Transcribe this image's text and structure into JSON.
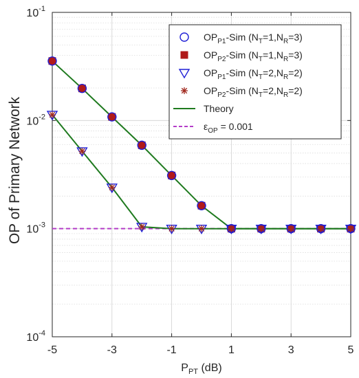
{
  "chart_data": {
    "type": "line",
    "x_axis": {
      "label_main": "P",
      "label_sub": "PT",
      "label_unit": " (dB)",
      "range": [
        -5,
        5
      ],
      "ticks": [
        -5,
        -3,
        -1,
        1,
        3,
        5
      ],
      "tick_labels": [
        "-5",
        "-3",
        "-1",
        "1",
        "3",
        "5"
      ],
      "grid_major": true
    },
    "y_axis": {
      "label": "OP of Primary Network",
      "scale": "log",
      "range": [
        0.0001,
        0.1
      ],
      "ticks": [
        0.0001,
        0.001,
        0.01,
        0.1
      ],
      "tick_labels": [
        {
          "base": "10",
          "exp": "-4"
        },
        {
          "base": "10",
          "exp": "-3"
        },
        {
          "base": "10",
          "exp": "-2"
        },
        {
          "base": "10",
          "exp": "-1"
        }
      ],
      "grid_major": true,
      "grid_minor": true
    },
    "x": [
      -5,
      -4,
      -3,
      -2,
      -1,
      0,
      1,
      2,
      3,
      4,
      5
    ],
    "series": [
      {
        "legend": {
          "pre": "OP",
          "sub1": "P1",
          "mid": "-Sim (N",
          "sub2": "T",
          "mid2": "=1,N",
          "sub3": "R",
          "post": "=3)"
        },
        "marker": "circle",
        "color": "#1f1fd6",
        "values": [
          0.0355,
          0.0198,
          0.0108,
          0.0059,
          0.0031,
          0.00163,
          0.001,
          0.001,
          0.001,
          0.001,
          0.001
        ]
      },
      {
        "legend": {
          "pre": "OP",
          "sub1": "P2",
          "mid": "-Sim (N",
          "sub2": "T",
          "mid2": "=1,N",
          "sub3": "R",
          "post": "=3)"
        },
        "marker": "square",
        "color": "#b01a1a",
        "values": [
          0.0355,
          0.0198,
          0.0108,
          0.0059,
          0.0031,
          0.00163,
          0.001,
          0.001,
          0.001,
          0.001,
          0.001
        ]
      },
      {
        "legend": {
          "pre": "OP",
          "sub1": "P1",
          "mid": "-Sim (N",
          "sub2": "T",
          "mid2": "=2,N",
          "sub3": "R",
          "post": "=2)"
        },
        "marker": "triangle-down",
        "color": "#1f1fd6",
        "values": [
          0.0113,
          0.0052,
          0.0024,
          0.00104,
          0.001,
          0.001,
          0.001,
          0.001,
          0.001,
          0.001,
          0.001
        ]
      },
      {
        "legend": {
          "pre": "OP",
          "sub1": "P2",
          "mid": "-Sim (N",
          "sub2": "T",
          "mid2": "=2,N",
          "sub3": "R",
          "post": "=2)"
        },
        "marker": "asterisk",
        "color": "#a0281e",
        "values": [
          0.0113,
          0.0052,
          0.0024,
          0.00104,
          0.001,
          0.001,
          0.001,
          0.001,
          0.001,
          0.001,
          0.001
        ]
      }
    ],
    "theory": {
      "legend": "Theory",
      "color": "#1f7a1f",
      "curves": [
        [
          0.0355,
          0.0198,
          0.0108,
          0.0059,
          0.0031,
          0.00163,
          0.001,
          0.001,
          0.001,
          0.001,
          0.001
        ],
        [
          0.0113,
          0.0052,
          0.0024,
          0.00104,
          0.001,
          0.001,
          0.001,
          0.001,
          0.001,
          0.001,
          0.001
        ]
      ]
    },
    "threshold": {
      "legend": {
        "pre": "ε",
        "sub": "OP",
        "post": " = 0.001"
      },
      "value": 0.001,
      "color": "#b43cc8"
    },
    "legend_position": "top-right"
  }
}
